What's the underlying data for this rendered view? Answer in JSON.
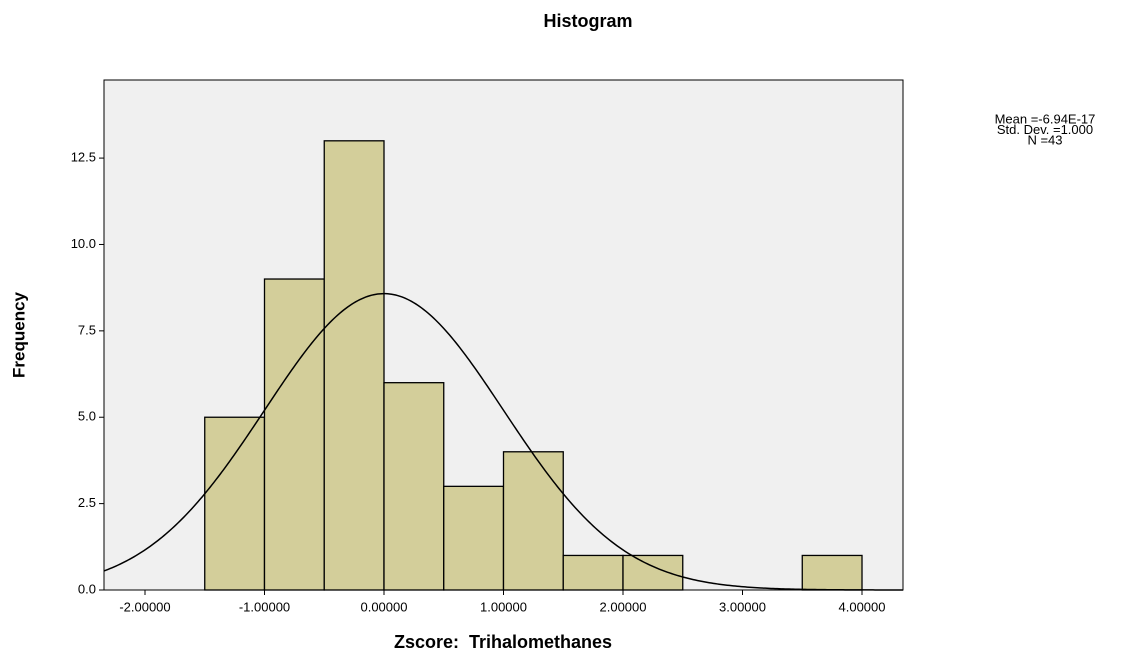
{
  "chart_data": {
    "type": "histogram",
    "title": "Histogram",
    "x_label": "Zscore:  Trihalomethanes",
    "y_label": "Frequency",
    "bins": [
      -1.5,
      -1.0,
      -0.5,
      0.0,
      0.5,
      1.0,
      1.5,
      2.0,
      2.5,
      3.0,
      3.5,
      4.0
    ],
    "values": [
      5,
      9,
      13,
      6,
      3,
      4,
      1,
      1,
      0,
      0,
      1
    ],
    "color": "#d3ce9a",
    "edge_color": "#000000",
    "background": "#f0f0f0",
    "xlim": [
      -2.343,
      4.343
    ],
    "ylim": [
      0,
      14.76
    ],
    "xticks": [
      {
        "value": -2,
        "label": "-2.00000"
      },
      {
        "value": -1,
        "label": "-1.00000"
      },
      {
        "value": 0,
        "label": "0.00000"
      },
      {
        "value": 1,
        "label": "1.00000"
      },
      {
        "value": 2,
        "label": "2.00000"
      },
      {
        "value": 3,
        "label": "3.00000"
      },
      {
        "value": 4,
        "label": "4.00000"
      }
    ],
    "yticks": [
      {
        "value": 0,
        "label": "0.0"
      },
      2.5,
      {
        "value": 5,
        "label": "5.0"
      },
      7.5,
      {
        "value": 10,
        "label": "10.0"
      },
      12.5
    ],
    "grid": false,
    "stats": [
      {
        "value": -6.94e-17,
        "label": "Mean =-6.94E-17"
      },
      {
        "value": 1.0,
        "label": "Std. Dev. =1.000"
      },
      {
        "value": 43,
        "label": "N =43"
      }
    ]
  }
}
